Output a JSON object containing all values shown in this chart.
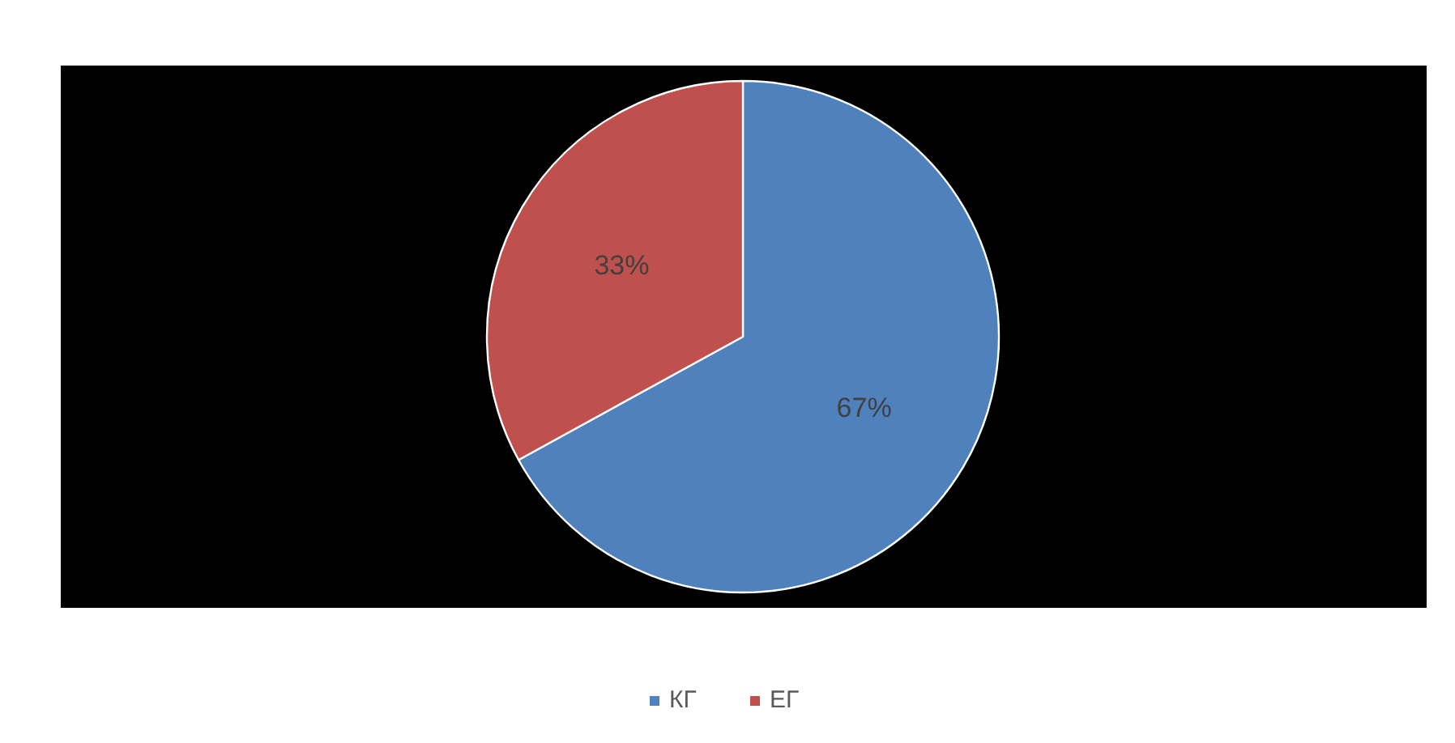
{
  "chart_data": {
    "type": "pie",
    "categories": [
      "КГ",
      "ЕГ"
    ],
    "values": [
      67,
      33
    ],
    "colors": [
      "#4f81bd",
      "#c0504d"
    ],
    "value_labels": [
      "67%",
      "33%"
    ],
    "legend": "bottom"
  }
}
